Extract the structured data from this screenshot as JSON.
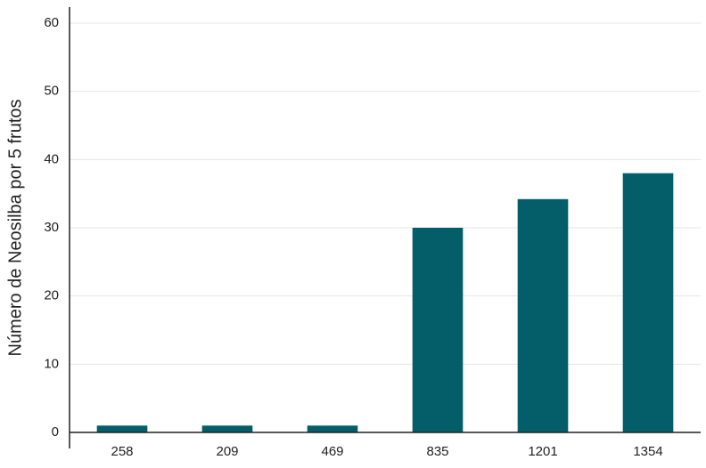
{
  "chart_data": {
    "type": "bar",
    "y_label": "Número de Neosilba por 5 frutos",
    "categories": [
      "258",
      "209",
      "469",
      "835",
      "1201",
      "1354"
    ],
    "values": [
      1,
      1,
      1,
      30,
      34.2,
      38
    ],
    "color": "#035e6a",
    "ylim": [
      0,
      60
    ],
    "yticks": [
      0,
      10,
      20,
      30,
      40,
      50,
      60
    ],
    "grid": true
  }
}
